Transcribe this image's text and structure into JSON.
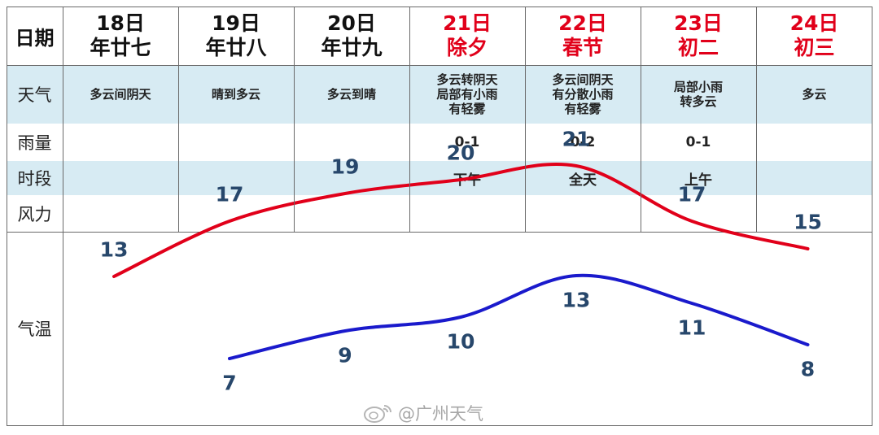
{
  "header": {
    "date_label": "日期"
  },
  "days": [
    {
      "date": "18日",
      "lunar": "年廿七",
      "holiday": false,
      "weather": "多云间阴天",
      "rain": "",
      "period": "",
      "wind": ""
    },
    {
      "date": "19日",
      "lunar": "年廿八",
      "holiday": false,
      "weather": "晴到多云",
      "rain": "",
      "period": "",
      "wind": ""
    },
    {
      "date": "20日",
      "lunar": "年廿九",
      "holiday": false,
      "weather": "多云到晴",
      "rain": "",
      "period": "",
      "wind": ""
    },
    {
      "date": "21日",
      "lunar": "除夕",
      "holiday": true,
      "weather": "多云转阴天\n局部有小雨\n有轻雾",
      "rain": "0-1",
      "period": "下午",
      "wind": ""
    },
    {
      "date": "22日",
      "lunar": "春节",
      "holiday": true,
      "weather": "多云间阴天\n有分散小雨\n有轻雾",
      "rain": "0-2",
      "period": "全天",
      "wind": ""
    },
    {
      "date": "23日",
      "lunar": "初二",
      "holiday": true,
      "weather": "局部小雨\n转多云",
      "rain": "0-1",
      "period": "上午",
      "wind": ""
    },
    {
      "date": "24日",
      "lunar": "初三",
      "holiday": true,
      "weather": "多云",
      "rain": "",
      "period": "",
      "wind": ""
    }
  ],
  "row_labels": {
    "weather": "天气",
    "rain": "雨量",
    "period": "时段",
    "wind": "风力",
    "temperature": "气温"
  },
  "temperature": {
    "high": [
      13,
      17,
      19,
      20,
      21,
      17,
      15
    ],
    "low": [
      null,
      7,
      9,
      10,
      13,
      11,
      8
    ],
    "high_color": "#e1001a",
    "low_color": "#1a1acc",
    "label_color": "#27476b"
  },
  "watermark": {
    "text": "@广州天气",
    "icon": "weibo-icon"
  },
  "colors": {
    "band": "#d7ebf3",
    "holiday_text": "#e1001a"
  }
}
